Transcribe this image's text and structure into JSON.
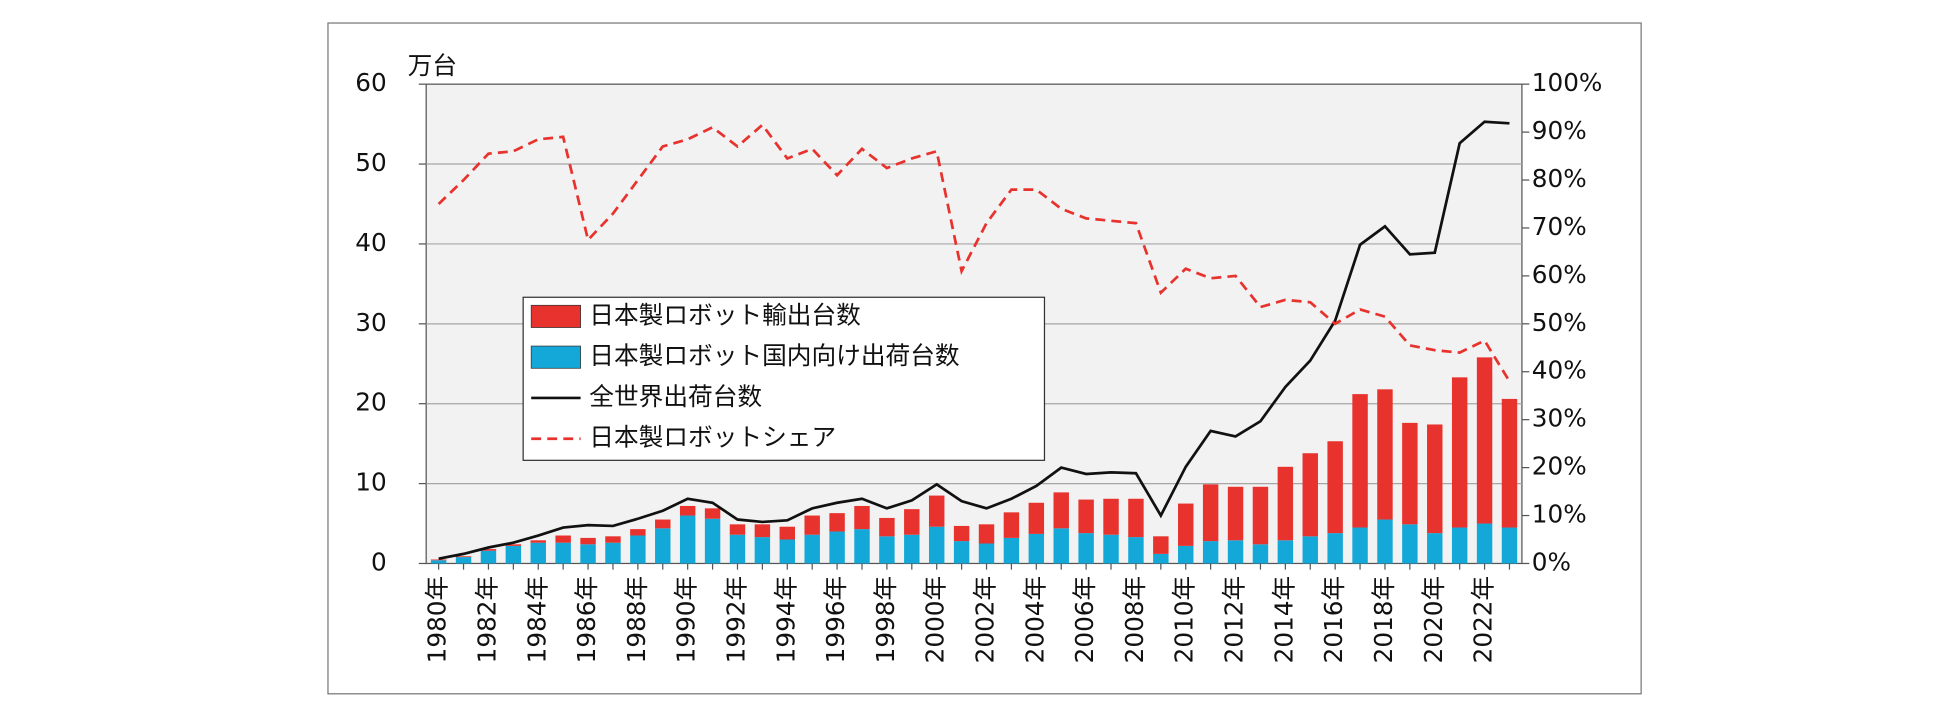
{
  "chart_data": {
    "type": "bar",
    "y_label": "万台",
    "categories": [
      "1980年",
      null,
      "1982年",
      null,
      "1984年",
      null,
      "1986年",
      null,
      "1988年",
      null,
      "1990年",
      null,
      "1992年",
      null,
      "1994年",
      null,
      "1996年",
      null,
      "1998年",
      null,
      "2000年",
      null,
      "2002年",
      null,
      "2004年",
      null,
      "2006年",
      null,
      "2008年",
      null,
      "2010年",
      null,
      "2012年",
      null,
      "2014年",
      null,
      "2016年",
      null,
      "2018年",
      null,
      "2020年",
      null,
      "2022年",
      null
    ],
    "ylim": [
      0,
      60
    ],
    "yticks": [
      0,
      10,
      20,
      30,
      40,
      50,
      60
    ],
    "y2lim": [
      0,
      100
    ],
    "y2ticks": [
      {
        "value": 0,
        "label": "0%"
      },
      {
        "value": 10,
        "label": "10%"
      },
      {
        "value": 20,
        "label": "20%"
      },
      {
        "value": 30,
        "label": "30%"
      },
      {
        "value": 40,
        "label": "40%"
      },
      {
        "value": 50,
        "label": "50%"
      },
      {
        "value": 60,
        "label": "60%"
      },
      {
        "value": 70,
        "label": "70%"
      },
      {
        "value": 80,
        "label": "80%"
      },
      {
        "value": 90,
        "label": "90%"
      },
      {
        "value": 100,
        "label": "100%"
      }
    ],
    "grid": true,
    "series": [
      {
        "name": "日本製ロボット輸出台数",
        "type": "bar",
        "color": "#e8322d",
        "values": [
          0.1,
          0.1,
          0.2,
          0.2,
          0.3,
          0.9,
          0.8,
          0.8,
          0.8,
          1.1,
          1.2,
          1.3,
          1.3,
          1.6,
          1.6,
          2.4,
          2.3,
          2.9,
          2.3,
          3.2,
          3.9,
          1.9,
          2.4,
          3.2,
          3.9,
          4.5,
          4.2,
          4.5,
          4.8,
          2.2,
          5.3,
          7.1,
          6.7,
          7.2,
          9.2,
          10.4,
          11.5,
          16.7,
          16.3,
          12.7,
          13.6,
          18.8,
          20.8,
          16.1
        ]
      },
      {
        "name": "日本製ロボット国内向け出荷台数",
        "type": "bar",
        "color": "#14a8d8",
        "values": [
          0.4,
          0.8,
          1.6,
          2.2,
          2.6,
          2.6,
          2.4,
          2.6,
          3.5,
          4.4,
          6.0,
          5.6,
          3.6,
          3.3,
          3.0,
          3.6,
          4.0,
          4.3,
          3.4,
          3.6,
          4.6,
          2.8,
          2.5,
          3.2,
          3.7,
          4.4,
          3.8,
          3.6,
          3.3,
          1.2,
          2.2,
          2.8,
          2.9,
          2.4,
          2.9,
          3.4,
          3.8,
          4.5,
          5.5,
          4.9,
          3.8,
          4.5,
          5.0,
          4.5
        ]
      },
      {
        "name": "全世界出荷台数",
        "type": "line",
        "color": "#111111",
        "dashed": false,
        "values": [
          0.6,
          1.2,
          2.0,
          2.6,
          3.5,
          4.5,
          4.8,
          4.7,
          5.6,
          6.6,
          8.1,
          7.6,
          5.5,
          5.2,
          5.4,
          6.9,
          7.6,
          8.1,
          6.9,
          7.9,
          9.9,
          7.8,
          6.9,
          8.1,
          9.7,
          12.0,
          11.2,
          11.4,
          11.3,
          6.0,
          12.1,
          16.6,
          15.9,
          17.8,
          22.1,
          25.4,
          30.4,
          39.9,
          42.2,
          38.7,
          38.9,
          52.6,
          55.3,
          55.1
        ]
      },
      {
        "name": "日本製ロボットシェア",
        "type": "line",
        "axis": "y2",
        "color": "#e8322d",
        "dashed": true,
        "values": [
          75,
          80,
          85.5,
          86,
          88.5,
          89,
          67.5,
          73,
          80,
          87,
          88.5,
          91,
          87,
          91.5,
          84.5,
          86.5,
          81,
          86.5,
          82.5,
          84.5,
          86,
          61,
          71,
          78,
          78,
          74,
          72,
          71.5,
          71,
          56.5,
          61.5,
          59.5,
          60,
          53.5,
          55,
          54.5,
          50,
          53,
          51.5,
          45.5,
          44.5,
          44,
          46.5,
          38
        ]
      }
    ]
  }
}
